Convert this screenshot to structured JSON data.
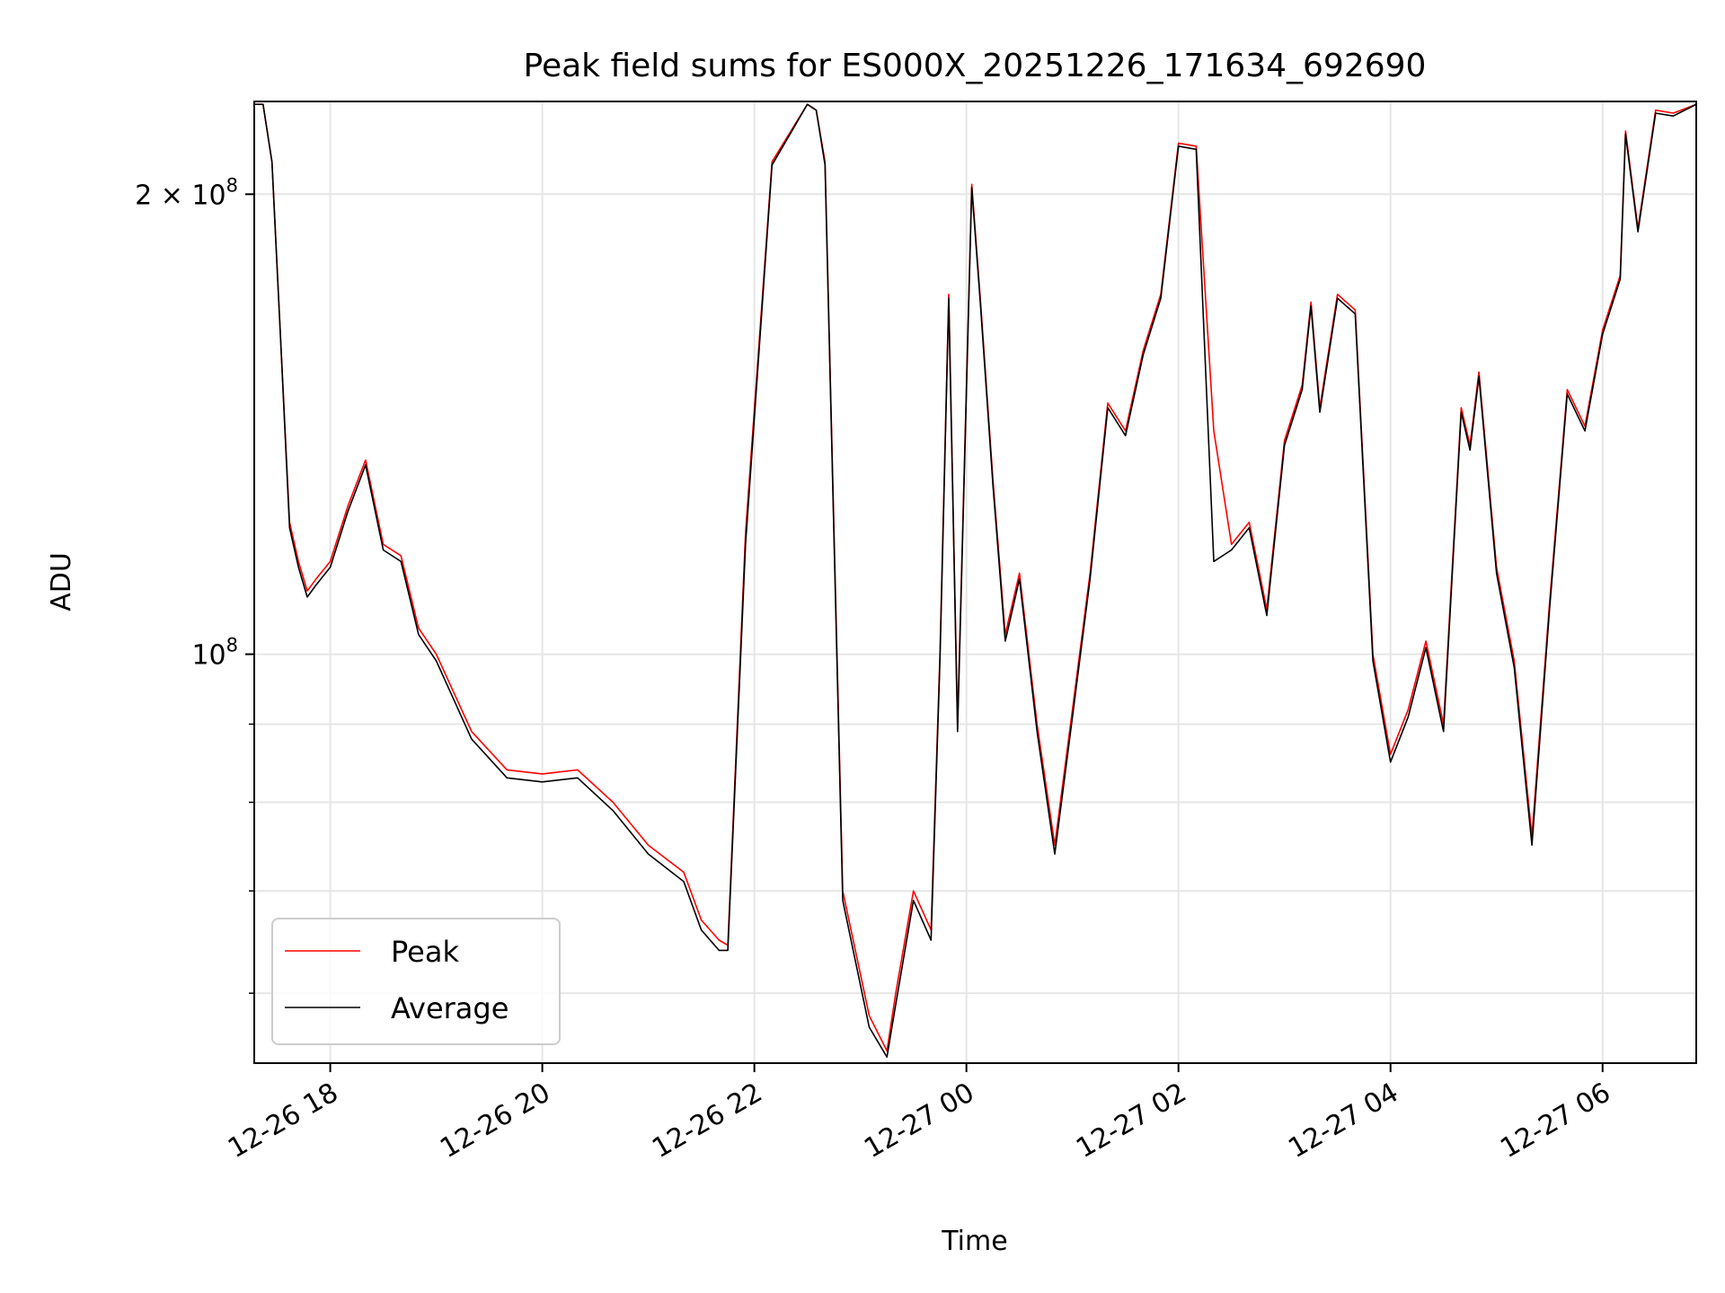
{
  "chart_data": {
    "type": "line",
    "title": "Peak field sums for ES000X_20251226_171634_692690",
    "xlabel": "Time",
    "ylabel": "ADU",
    "yscale": "log",
    "grid": true,
    "legend_placement": "lower-left",
    "xlim": [
      "2025-12-26 17:17",
      "2025-12-27 06:53"
    ],
    "ylim": [
      54000000,
      230000000
    ],
    "x_ticks": [
      "12-26 18",
      "12-26 20",
      "12-26 22",
      "12-27 00",
      "12-27 02",
      "12-27 04",
      "12-27 06"
    ],
    "x_tick_values": [
      "2025-12-26 18:00",
      "2025-12-26 20:00",
      "2025-12-26 22:00",
      "2025-12-27 00:00",
      "2025-12-27 02:00",
      "2025-12-27 04:00",
      "2025-12-27 06:00"
    ],
    "y_major_ticks": [
      {
        "value": 100000000,
        "base": "10",
        "exp": "8"
      },
      {
        "value": 200000000,
        "base": "2 × 10",
        "exp": "8"
      }
    ],
    "y_minor_ticks": [
      60000000,
      70000000,
      80000000,
      90000000
    ],
    "colors": {
      "Peak": "#ff0000",
      "Average": "#000000",
      "grid": "#e6e6e6"
    },
    "x": [
      "2025-12-26 17:17",
      "2025-12-26 17:22",
      "2025-12-26 17:27",
      "2025-12-26 17:32",
      "2025-12-26 17:37",
      "2025-12-26 17:42",
      "2025-12-26 17:47",
      "2025-12-26 17:52",
      "2025-12-26 18:00",
      "2025-12-26 18:10",
      "2025-12-26 18:20",
      "2025-12-26 18:30",
      "2025-12-26 18:40",
      "2025-12-26 18:50",
      "2025-12-26 19:00",
      "2025-12-26 19:20",
      "2025-12-26 19:40",
      "2025-12-26 20:00",
      "2025-12-26 20:20",
      "2025-12-26 20:40",
      "2025-12-26 21:00",
      "2025-12-26 21:20",
      "2025-12-26 21:30",
      "2025-12-26 21:40",
      "2025-12-26 21:45",
      "2025-12-26 21:55",
      "2025-12-26 22:10",
      "2025-12-26 22:30",
      "2025-12-26 22:35",
      "2025-12-26 22:40",
      "2025-12-26 22:50",
      "2025-12-26 23:05",
      "2025-12-26 23:15",
      "2025-12-26 23:20",
      "2025-12-26 23:30",
      "2025-12-26 23:40",
      "2025-12-26 23:45",
      "2025-12-26 23:50",
      "2025-12-26 23:55",
      "2025-12-27 00:03",
      "2025-12-27 00:08",
      "2025-12-27 00:15",
      "2025-12-27 00:22",
      "2025-12-27 00:30",
      "2025-12-27 00:40",
      "2025-12-27 00:50",
      "2025-12-27 01:00",
      "2025-12-27 01:10",
      "2025-12-27 01:20",
      "2025-12-27 01:30",
      "2025-12-27 01:40",
      "2025-12-27 01:50",
      "2025-12-27 02:00",
      "2025-12-27 02:10",
      "2025-12-27 02:20",
      "2025-12-27 02:30",
      "2025-12-27 02:40",
      "2025-12-27 02:50",
      "2025-12-27 03:00",
      "2025-12-27 03:10",
      "2025-12-27 03:15",
      "2025-12-27 03:20",
      "2025-12-27 03:30",
      "2025-12-27 03:40",
      "2025-12-27 03:50",
      "2025-12-27 04:00",
      "2025-12-27 04:10",
      "2025-12-27 04:20",
      "2025-12-27 04:30",
      "2025-12-27 04:40",
      "2025-12-27 04:45",
      "2025-12-27 04:50",
      "2025-12-27 05:00",
      "2025-12-27 05:10",
      "2025-12-27 05:20",
      "2025-12-27 05:30",
      "2025-12-27 05:40",
      "2025-12-27 05:50",
      "2025-12-27 06:00",
      "2025-12-27 06:10",
      "2025-12-27 06:13",
      "2025-12-27 06:20",
      "2025-12-27 06:30",
      "2025-12-27 06:40",
      "2025-12-27 06:53"
    ],
    "series": [
      {
        "name": "Peak",
        "values": [
          229000000,
          229000000,
          210000000,
          160000000,
          122000000,
          115000000,
          110000000,
          112000000,
          115000000,
          125000000,
          134000000,
          118000000,
          116000000,
          104000000,
          100000000,
          89000000,
          84000000,
          83500000,
          84000000,
          80000000,
          75000000,
          72000000,
          67000000,
          65000000,
          64500000,
          120000000,
          210000000,
          229000000,
          227000000,
          210000000,
          70000000,
          58000000,
          55000000,
          60000000,
          70000000,
          66000000,
          100000000,
          172000000,
          90000000,
          203000000,
          170000000,
          130000000,
          103000000,
          113000000,
          90000000,
          75000000,
          92000000,
          113000000,
          146000000,
          140000000,
          158000000,
          172000000,
          216000000,
          215000000,
          140000000,
          118000000,
          122000000,
          107000000,
          138000000,
          150000000,
          170000000,
          145000000,
          172000000,
          168000000,
          100000000,
          86000000,
          92000000,
          102000000,
          90000000,
          145000000,
          137000000,
          153000000,
          114000000,
          99000000,
          76000000,
          108000000,
          149000000,
          141000000,
          163000000,
          177000000,
          220000000,
          190000000,
          227000000,
          226000000,
          229000000
        ]
      },
      {
        "name": "Average",
        "values": [
          229000000,
          229000000,
          210000000,
          160000000,
          121000000,
          114000000,
          109000000,
          111000000,
          114000000,
          124000000,
          133000000,
          117000000,
          115000000,
          103000000,
          99000000,
          88000000,
          83000000,
          82500000,
          83000000,
          79000000,
          74000000,
          71000000,
          66000000,
          64000000,
          64000000,
          118000000,
          209000000,
          229000000,
          227000000,
          209000000,
          69000000,
          57000000,
          54500000,
          59000000,
          69000000,
          65000000,
          99000000,
          171000000,
          89000000,
          202000000,
          169000000,
          129000000,
          102000000,
          112000000,
          89000000,
          74000000,
          91000000,
          112000000,
          145000000,
          139000000,
          157000000,
          171000000,
          215000000,
          214000000,
          115000000,
          117000000,
          121000000,
          106000000,
          137000000,
          149000000,
          169000000,
          144000000,
          171000000,
          167000000,
          99000000,
          85000000,
          91000000,
          101000000,
          89000000,
          144000000,
          136000000,
          152000000,
          113000000,
          98000000,
          75000000,
          107000000,
          148000000,
          140000000,
          162000000,
          176000000,
          219000000,
          189000000,
          226000000,
          225000000,
          229000000
        ]
      }
    ]
  }
}
